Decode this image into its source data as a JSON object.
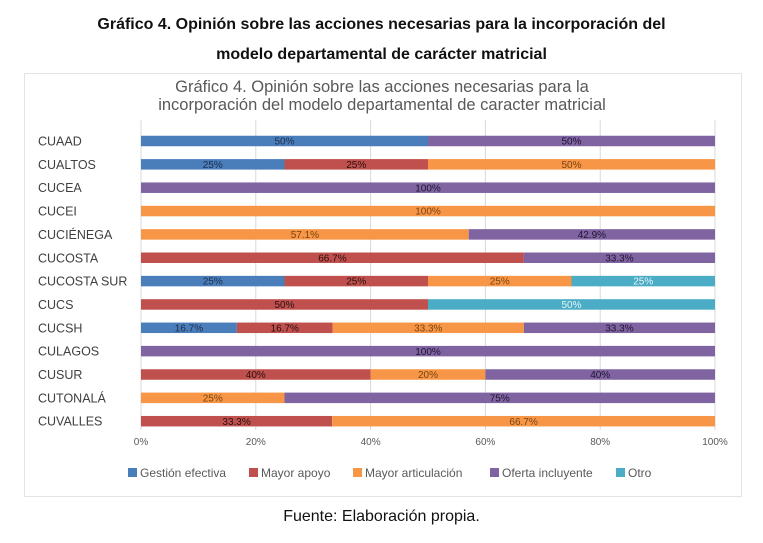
{
  "document": {
    "title_line1": "Gráfico 4. Opinión sobre las acciones necesarias para la incorporación del",
    "title_line2": "modelo departamental de carácter matricial",
    "source": "Fuente: Elaboración propia."
  },
  "chart_data": {
    "type": "bar",
    "orientation": "horizontal",
    "stacked": "percent",
    "title_line1": "Gráfico 4. Opinión sobre las acciones necesarias para la",
    "title_line2": "incorporación del modelo departamental de caracter matricial",
    "categories": [
      "CUAAD",
      "CUALTOS",
      "CUCEA",
      "CUCEI",
      "CUCIÉNEGA",
      "CUCOSTA",
      "CUCOSTA SUR",
      "CUCS",
      "CUCSH",
      "CULAGOS",
      "CUSUR",
      "CUTONALÁ",
      "CUVALLES"
    ],
    "series": [
      {
        "name": "Gestión efectiva",
        "color": "#4a7ebb",
        "label_color": "#1f2d4a",
        "values": [
          50,
          25,
          0,
          0,
          0,
          0,
          25,
          0,
          16.7,
          0,
          0,
          0,
          0
        ],
        "labels": [
          "50%",
          "25%",
          "",
          "",
          "",
          "",
          "25%",
          "",
          "16.7%",
          "",
          "",
          "",
          ""
        ]
      },
      {
        "name": "Mayor apoyo",
        "color": "#c0504d",
        "label_color": "#2a1010",
        "values": [
          0,
          25,
          0,
          0,
          0,
          66.7,
          25,
          50,
          16.7,
          0,
          40,
          0,
          33.3
        ],
        "labels": [
          "",
          "25%",
          "",
          "",
          "",
          "66.7%",
          "25%",
          "50%",
          "16.7%",
          "",
          "40%",
          "",
          "33.3%"
        ]
      },
      {
        "name": "Mayor articulación",
        "color": "#f79646",
        "label_color": "#7a4410",
        "values": [
          0,
          50,
          0,
          100,
          57.1,
          0,
          25,
          0,
          33.3,
          0,
          20,
          25,
          66.7
        ],
        "labels": [
          "",
          "50%",
          "",
          "100%",
          "57.1%",
          "",
          "25%",
          "",
          "33.3%",
          "",
          "20%",
          "25%",
          "66.7%"
        ]
      },
      {
        "name": "Oferta incluyente",
        "color": "#8064a2",
        "label_color": "#1e1530",
        "values": [
          50,
          0,
          100,
          0,
          42.9,
          33.3,
          0,
          0,
          33.3,
          100,
          40,
          75,
          0
        ],
        "labels": [
          "50%",
          "",
          "100%",
          "",
          "42.9%",
          "33.3%",
          "",
          "",
          "33.3%",
          "100%",
          "40%",
          "75%",
          ""
        ]
      },
      {
        "name": "Otro",
        "color": "#4bacc6",
        "label_color": "#e8f6fa",
        "values": [
          0,
          0,
          0,
          0,
          0,
          0,
          25,
          50,
          0,
          0,
          0,
          0,
          0
        ],
        "labels": [
          "",
          "",
          "",
          "",
          "",
          "",
          "25%",
          "50%",
          "",
          "",
          "",
          "",
          ""
        ]
      }
    ],
    "x_ticks": [
      "0%",
      "20%",
      "40%",
      "60%",
      "80%",
      "100%"
    ],
    "xlim": [
      0,
      100
    ],
    "legend": "bottom",
    "grid": true
  }
}
